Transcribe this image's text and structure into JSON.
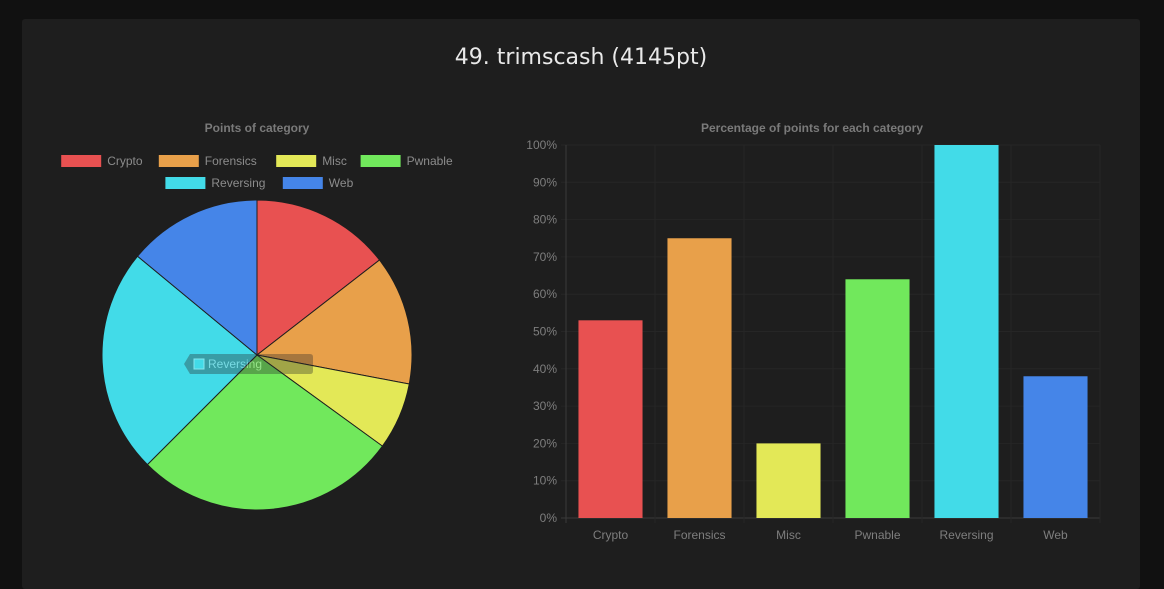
{
  "page": {
    "title": "49. trimscash (4145pt)"
  },
  "chart_data": [
    {
      "type": "pie",
      "title": "Points of category",
      "legend_position": "top",
      "categories": [
        "Crypto",
        "Forensics",
        "Misc",
        "Pwnable",
        "Reversing",
        "Web"
      ],
      "values": [
        14.5,
        13.5,
        7,
        27.5,
        23.5,
        14
      ],
      "colors": [
        "#e85151",
        "#e8a04a",
        "#e3e857",
        "#71e85c",
        "#42dbe8",
        "#4585e8"
      ],
      "tooltip": "Reversing"
    },
    {
      "type": "bar",
      "title": "Percentage of points for each category",
      "categories": [
        "Crypto",
        "Forensics",
        "Misc",
        "Pwnable",
        "Reversing",
        "Web"
      ],
      "values": [
        53,
        75,
        20,
        64,
        100,
        38
      ],
      "colors": [
        "#e85151",
        "#e8a04a",
        "#e3e857",
        "#71e85c",
        "#42dbe8",
        "#4585e8"
      ],
      "ylim": [
        0,
        100
      ],
      "yticks": [
        "0%",
        "10%",
        "20%",
        "30%",
        "40%",
        "50%",
        "60%",
        "70%",
        "80%",
        "90%",
        "100%"
      ],
      "grid": true
    }
  ]
}
